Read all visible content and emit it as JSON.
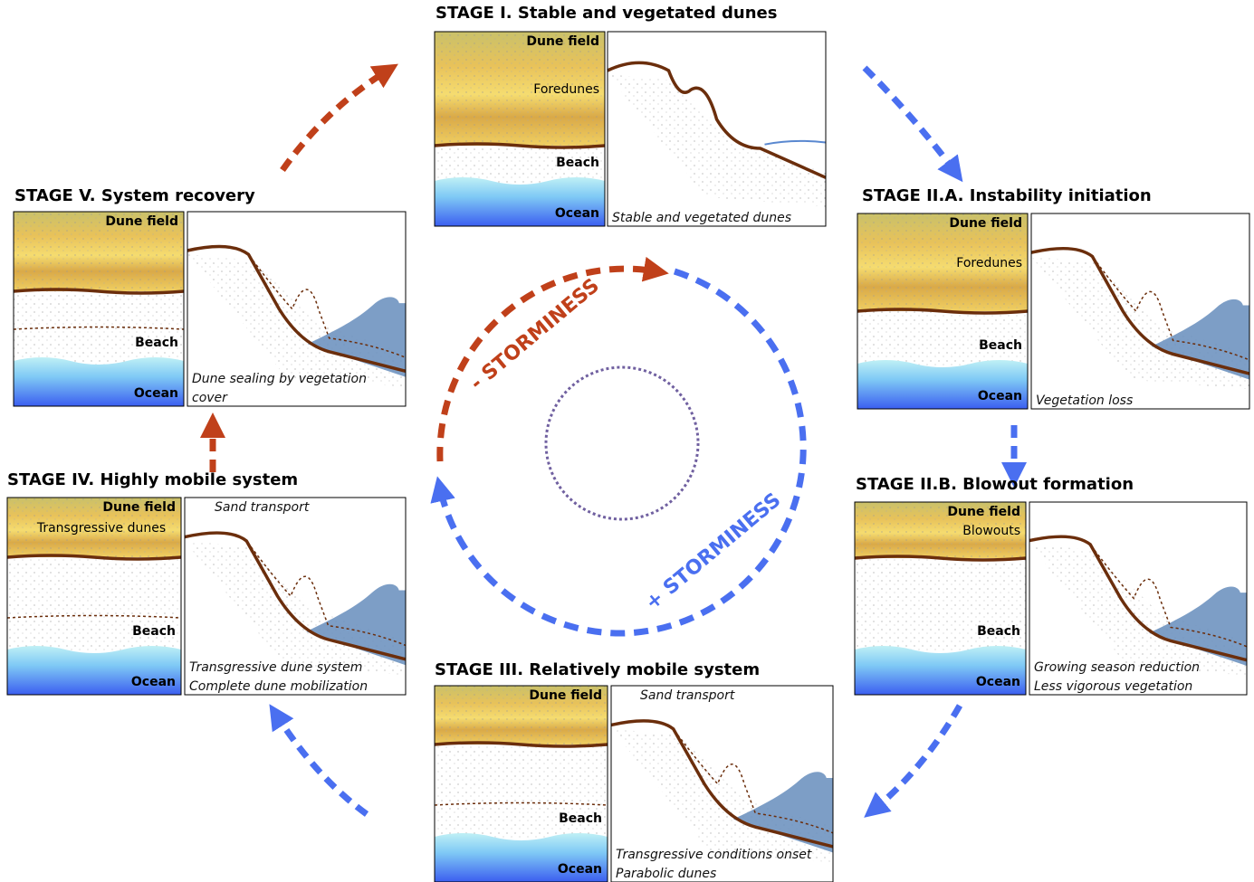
{
  "stages": [
    {
      "title": "STAGE I. Stable and vegetated dunes",
      "map_labels": [
        "Dune field",
        "Foredunes",
        "Beach",
        "Ocean"
      ],
      "caption": [
        "Stable and vegetated dunes"
      ]
    },
    {
      "title": "STAGE II.A. Instability initiation",
      "map_labels": [
        "Dune field",
        "Foredunes",
        "Beach",
        "Ocean"
      ],
      "caption": [
        "Vegetation loss"
      ]
    },
    {
      "title": "STAGE II.B. Blowout formation",
      "map_labels": [
        "Dune field",
        "Blowouts",
        "Beach",
        "Ocean"
      ],
      "caption": [
        "Growing season reduction",
        "Less vigorous vegetation"
      ]
    },
    {
      "title": "STAGE III. Relatively mobile system",
      "map_labels": [
        "Dune field",
        "Beach",
        "Ocean"
      ],
      "profile_label": "Sand transport",
      "caption": [
        "Transgressive conditions onset",
        "Parabolic dunes"
      ]
    },
    {
      "title": "STAGE IV. Highly mobile system",
      "map_labels": [
        "Dune field",
        "Transgressive dunes",
        "Beach",
        "Ocean"
      ],
      "profile_label": "Sand transport",
      "caption": [
        "Transgressive dune system",
        "Complete dune mobilization"
      ]
    },
    {
      "title": "STAGE V. System recovery",
      "map_labels": [
        "Dune field",
        "Beach",
        "Ocean"
      ],
      "caption": [
        "Dune sealing by vegetation",
        "cover"
      ]
    }
  ],
  "cycle": {
    "minus": "- STORMINESS",
    "plus": "+ STORMINESS"
  }
}
